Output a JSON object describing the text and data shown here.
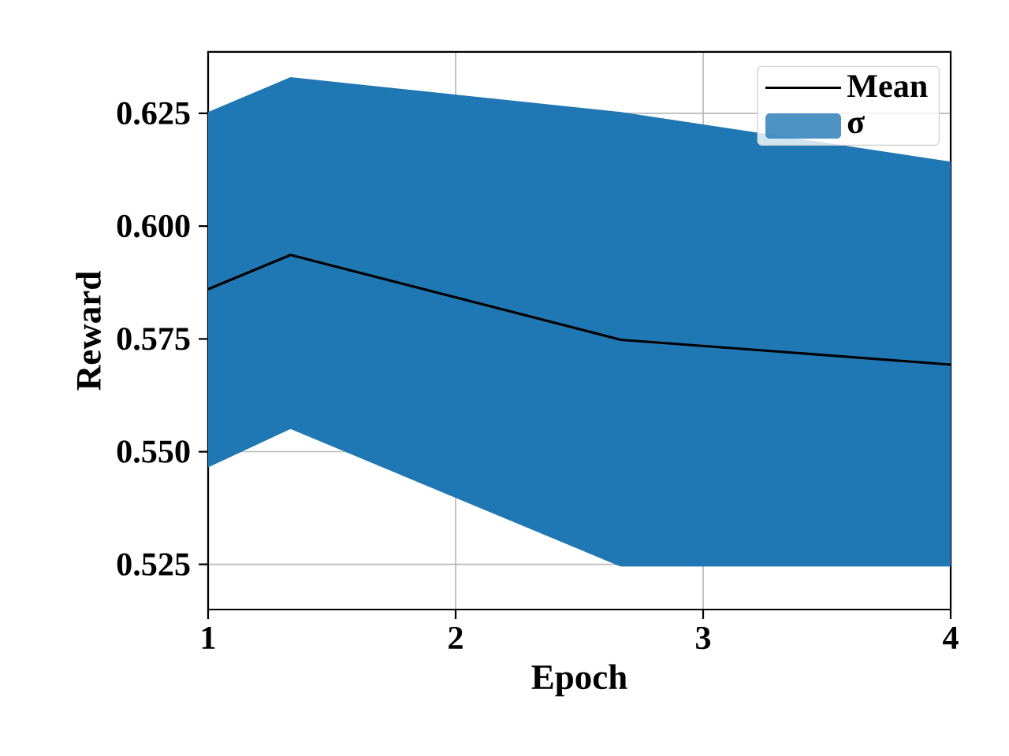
{
  "chart_data": {
    "type": "line",
    "xlabel": "Epoch",
    "ylabel": "Reward",
    "x": [
      1,
      1.333,
      2.667,
      4
    ],
    "series": [
      {
        "name": "Mean",
        "color": "#000000",
        "values": [
          0.586,
          0.5936,
          0.5748,
          0.5693
        ],
        "lower": [
          0.5465,
          0.555,
          0.5245,
          0.5245
        ],
        "upper": [
          0.6253,
          0.633,
          0.6253,
          0.6143
        ]
      },
      {
        "name": "σ",
        "type": "area",
        "color": "#1f77b4",
        "values": [
          null,
          null,
          null,
          null
        ]
      }
    ],
    "xlim": [
      1,
      4
    ],
    "ylim": [
      0.515,
      0.6386
    ],
    "xticks": [
      1,
      2,
      3,
      4
    ],
    "yticks": [
      {
        "value": 0.525,
        "label": "0.525"
      },
      {
        "value": 0.55,
        "label": "0.550"
      },
      {
        "value": 0.575,
        "label": "0.575"
      },
      {
        "value": 0.6,
        "label": "0.600"
      },
      {
        "value": 0.625,
        "label": "0.625"
      }
    ],
    "grid": true,
    "legend": "top right",
    "marker": "none",
    "line_style": "solid"
  }
}
